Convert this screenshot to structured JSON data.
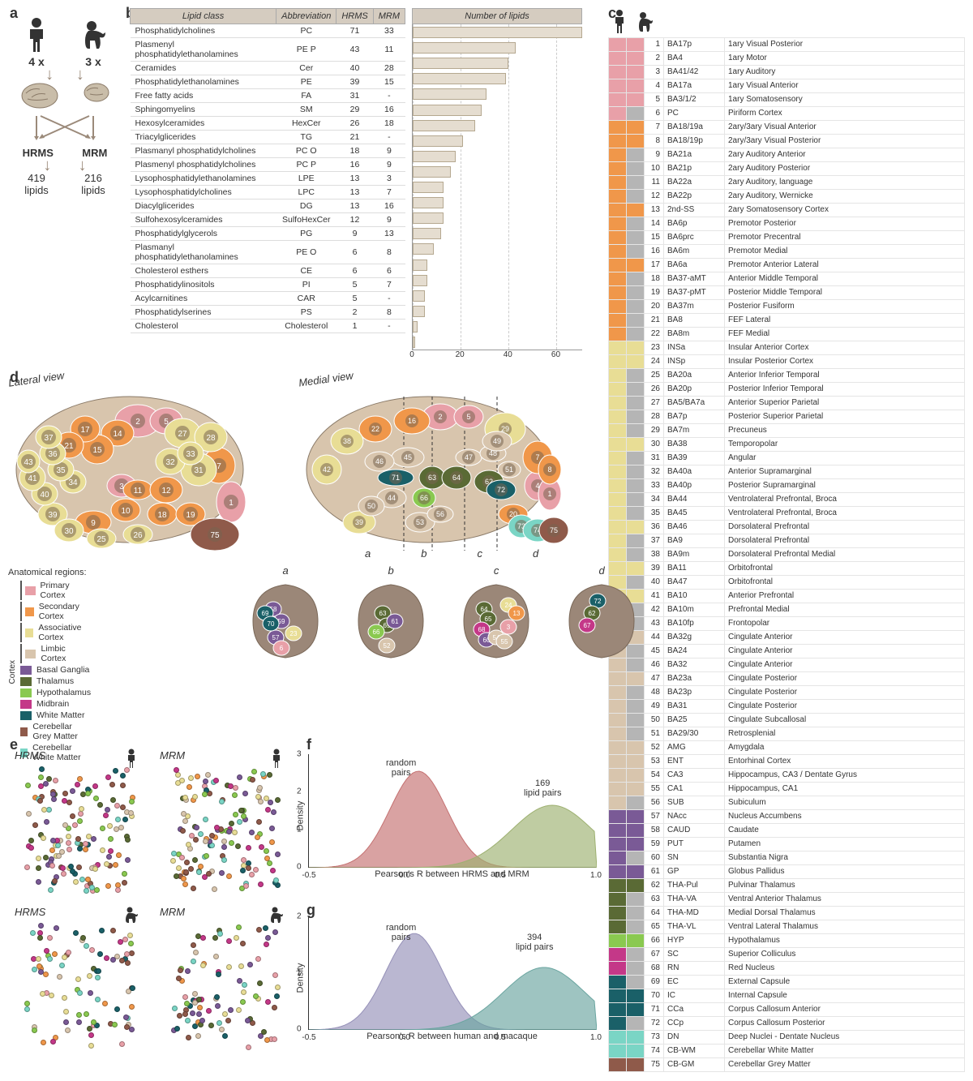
{
  "panel_labels": {
    "a": "a",
    "b": "b",
    "c": "c",
    "d": "d",
    "e": "e",
    "f": "f",
    "g": "g"
  },
  "panel_a": {
    "human_n": "4 x",
    "macaque_n": "3 x",
    "method1": "HRMS",
    "method2": "MRM",
    "lipids1": "419",
    "lipids2": "216",
    "lipids_word": "lipids"
  },
  "colors": {
    "primary_cortex": "#e8a0a8",
    "secondary_cortex": "#f0974a",
    "associative_cortex": "#e8dd95",
    "limbic_cortex": "#d8c5ad",
    "basal_ganglia": "#7a5a96",
    "thalamus": "#5a6a35",
    "hypothalamus": "#8ac950",
    "midbrain": "#c43888",
    "white_matter": "#1a6068",
    "cerebellar_grey": "#8f5a4a",
    "cerebellar_white": "#7ad5c5",
    "grey_absent": "#b5b5b5",
    "bar_fill": "#e5ddd0",
    "bar_border": "#b5a890",
    "table_header": "#d5ccc0",
    "density_f_random": "#c47070",
    "density_f_lipid": "#9db070",
    "density_g_random": "#9590b8",
    "density_g_lipid": "#6aa5a0"
  },
  "lipid_table": {
    "headers": [
      "Lipid class",
      "Abbreviation",
      "HRMS",
      "MRM"
    ],
    "bar_title": "Number of lipids",
    "xlim": [
      0,
      71
    ],
    "xticks": [
      0,
      20,
      40,
      60
    ],
    "rows": [
      [
        "Phosphatidylcholines",
        "PC",
        "71",
        "33",
        71
      ],
      [
        "Plasmenyl phosphatidylethanolamines",
        "PE P",
        "43",
        "11",
        43
      ],
      [
        "Ceramides",
        "Cer",
        "40",
        "28",
        40
      ],
      [
        "Phosphatidylethanolamines",
        "PE",
        "39",
        "15",
        39
      ],
      [
        "Free fatty acids",
        "FA",
        "31",
        "-",
        31
      ],
      [
        "Sphingomyelins",
        "SM",
        "29",
        "16",
        29
      ],
      [
        "Hexosylceramides",
        "HexCer",
        "26",
        "18",
        26
      ],
      [
        "Triacylglicerides",
        "TG",
        "21",
        "-",
        21
      ],
      [
        "Plasmanyl phosphatidylcholines",
        "PC O",
        "18",
        "9",
        18
      ],
      [
        "Plasmenyl phosphatidylcholines",
        "PC P",
        "16",
        "9",
        16
      ],
      [
        "Lysophosphatidylethanolamines",
        "LPE",
        "13",
        "3",
        13
      ],
      [
        "Lysophosphatidylcholines",
        "LPC",
        "13",
        "7",
        13
      ],
      [
        "Diacylglicerides",
        "DG",
        "13",
        "16",
        13
      ],
      [
        "Sulfohexosylceramides",
        "SulfoHexCer",
        "12",
        "9",
        12
      ],
      [
        "Phosphatidylglycerols",
        "PG",
        "9",
        "13",
        9
      ],
      [
        "Plasmanyl phosphatidylethanolamines",
        "PE O",
        "6",
        "8",
        6
      ],
      [
        "Cholesterol esthers",
        "CE",
        "6",
        "6",
        6
      ],
      [
        "Phosphatidylinositols",
        "PI",
        "5",
        "7",
        5
      ],
      [
        "Acylcarnitines",
        "CAR",
        "5",
        "-",
        5
      ],
      [
        "Phosphatidylserines",
        "PS",
        "2",
        "8",
        2
      ],
      [
        "Cholesterol",
        "Cholesterol",
        "1",
        "-",
        1
      ]
    ]
  },
  "legend_d": {
    "title": "Anatomical regions:",
    "cortex_label": "Cortex",
    "items": [
      {
        "label": "Primary Cortex",
        "color": "primary_cortex",
        "cortex": true
      },
      {
        "label": "Secondary Cortex",
        "color": "secondary_cortex",
        "cortex": true
      },
      {
        "label": "Associative Cortex",
        "color": "associative_cortex",
        "cortex": true
      },
      {
        "label": "Limbic Cortex",
        "color": "limbic_cortex",
        "cortex": true
      },
      {
        "label": "Basal Ganglia",
        "color": "basal_ganglia"
      },
      {
        "label": "Thalamus",
        "color": "thalamus"
      },
      {
        "label": "Hypothalamus",
        "color": "hypothalamus"
      },
      {
        "label": "Midbrain",
        "color": "midbrain"
      },
      {
        "label": "White Matter",
        "color": "white_matter"
      },
      {
        "label": "Cerebellar Grey Matter",
        "color": "cerebellar_grey"
      },
      {
        "label": "Cerebellar White Matter",
        "color": "cerebellar_white"
      }
    ]
  },
  "panel_d": {
    "lateral": "Lateral view",
    "medial": "Medial view",
    "sections": [
      "a",
      "b",
      "c",
      "d"
    ]
  },
  "regions": [
    [
      1,
      "BA17p",
      "1ary Visual Posterior",
      "primary_cortex",
      true
    ],
    [
      2,
      "BA4",
      "1ary Motor",
      "primary_cortex",
      true
    ],
    [
      3,
      "BA41/42",
      "1ary Auditory",
      "primary_cortex",
      true
    ],
    [
      4,
      "BA17a",
      "1ary Visual Anterior",
      "primary_cortex",
      true
    ],
    [
      5,
      "BA3/1/2",
      "1ary Somatosensory",
      "primary_cortex",
      true
    ],
    [
      6,
      "PC",
      "Piriform Cortex",
      "primary_cortex",
      false
    ],
    [
      7,
      "BA18/19a",
      "2ary/3ary Visual Anterior",
      "secondary_cortex",
      true
    ],
    [
      8,
      "BA18/19p",
      "2ary/3ary Visual Posterior",
      "secondary_cortex",
      true
    ],
    [
      9,
      "BA21a",
      "2ary Auditory Anterior",
      "secondary_cortex",
      false
    ],
    [
      10,
      "BA21p",
      "2ary Auditory Posterior",
      "secondary_cortex",
      false
    ],
    [
      11,
      "BA22a",
      "2ary Auditory, language",
      "secondary_cortex",
      false
    ],
    [
      12,
      "BA22p",
      "2ary Auditory, Wernicke",
      "secondary_cortex",
      false
    ],
    [
      13,
      "2nd-SS",
      "2ary Somatosensory Cortex",
      "secondary_cortex",
      true
    ],
    [
      14,
      "BA6p",
      "Premotor Posterior",
      "secondary_cortex",
      false
    ],
    [
      15,
      "BA6prc",
      "Premotor Precentral",
      "secondary_cortex",
      false
    ],
    [
      16,
      "BA6m",
      "Premotor Medial",
      "secondary_cortex",
      false
    ],
    [
      17,
      "BA6a",
      "Premotor Anterior Lateral",
      "secondary_cortex",
      true
    ],
    [
      18,
      "BA37-aMT",
      "Anterior Middle Temporal",
      "secondary_cortex",
      false
    ],
    [
      19,
      "BA37-pMT",
      "Posterior Middle Temporal",
      "secondary_cortex",
      false
    ],
    [
      20,
      "BA37m",
      "Posterior Fusiform",
      "secondary_cortex",
      false
    ],
    [
      21,
      "BA8",
      "FEF Lateral",
      "secondary_cortex",
      false
    ],
    [
      22,
      "BA8m",
      "FEF Medial",
      "secondary_cortex",
      false
    ],
    [
      23,
      "INSa",
      "Insular Anterior Cortex",
      "associative_cortex",
      true
    ],
    [
      24,
      "INSp",
      "Insular Posterior Cortex",
      "associative_cortex",
      true
    ],
    [
      25,
      "BA20a",
      "Anterior Inferior Temporal",
      "associative_cortex",
      false
    ],
    [
      26,
      "BA20p",
      "Posterior Inferior Temporal",
      "associative_cortex",
      false
    ],
    [
      27,
      "BA5/BA7a",
      "Anterior Superior Parietal",
      "associative_cortex",
      false
    ],
    [
      28,
      "BA7p",
      "Posterior Superior Parietal",
      "associative_cortex",
      false
    ],
    [
      29,
      "BA7m",
      "Precuneus",
      "associative_cortex",
      false
    ],
    [
      30,
      "BA38",
      "Temporopolar",
      "associative_cortex",
      true
    ],
    [
      31,
      "BA39",
      "Angular",
      "associative_cortex",
      false
    ],
    [
      32,
      "BA40a",
      "Anterior Supramarginal",
      "associative_cortex",
      false
    ],
    [
      33,
      "BA40p",
      "Posterior Supramarginal",
      "associative_cortex",
      false
    ],
    [
      34,
      "BA44",
      "Ventrolateral Prefrontal, Broca",
      "associative_cortex",
      false
    ],
    [
      35,
      "BA45",
      "Ventrolateral Prefrontal, Broca",
      "associative_cortex",
      false
    ],
    [
      36,
      "BA46",
      "Dorsolateral Prefrontal",
      "associative_cortex",
      true
    ],
    [
      37,
      "BA9",
      "Dorsolateral Prefrontal",
      "associative_cortex",
      false
    ],
    [
      38,
      "BA9m",
      "Dorsolateral Prefrontal Medial",
      "associative_cortex",
      false
    ],
    [
      39,
      "BA11",
      "Orbitofrontal",
      "associative_cortex",
      true
    ],
    [
      40,
      "BA47",
      "Orbitofrontal",
      "associative_cortex",
      false
    ],
    [
      41,
      "BA10",
      "Anterior Prefrontal",
      "associative_cortex",
      true
    ],
    [
      42,
      "BA10m",
      "Prefrontal Medial",
      "associative_cortex",
      false
    ],
    [
      43,
      "BA10fp",
      "Frontopolar",
      "associative_cortex",
      false
    ],
    [
      44,
      "BA32g",
      "Cingulate Anterior",
      "limbic_cortex",
      true
    ],
    [
      45,
      "BA24",
      "Cingulate Anterior",
      "limbic_cortex",
      false
    ],
    [
      46,
      "BA32",
      "Cingulate Anterior",
      "limbic_cortex",
      false
    ],
    [
      47,
      "BA23a",
      "Cingulate Posterior",
      "limbic_cortex",
      true
    ],
    [
      48,
      "BA23p",
      "Cingulate Posterior",
      "limbic_cortex",
      false
    ],
    [
      49,
      "BA31",
      "Cingulate Posterior",
      "limbic_cortex",
      false
    ],
    [
      50,
      "BA25",
      "Cingulate Subcallosal",
      "limbic_cortex",
      false
    ],
    [
      51,
      "BA29/30",
      "Retrosplenial",
      "limbic_cortex",
      false
    ],
    [
      52,
      "AMG",
      "Amygdala",
      "limbic_cortex",
      true
    ],
    [
      53,
      "ENT",
      "Entorhinal Cortex",
      "limbic_cortex",
      true
    ],
    [
      54,
      "CA3",
      "Hippocampus, CA3 / Dentate Gyrus",
      "limbic_cortex",
      true
    ],
    [
      55,
      "CA1",
      "Hippocampus, CA1",
      "limbic_cortex",
      true
    ],
    [
      56,
      "SUB",
      "Subiculum",
      "limbic_cortex",
      false
    ],
    [
      57,
      "NAcc",
      "Nucleus Accumbens",
      "basal_ganglia",
      true
    ],
    [
      58,
      "CAUD",
      "Caudate",
      "basal_ganglia",
      true
    ],
    [
      59,
      "PUT",
      "Putamen",
      "basal_ganglia",
      true
    ],
    [
      60,
      "SN",
      "Substantia Nigra",
      "basal_ganglia",
      false
    ],
    [
      61,
      "GP",
      "Globus Pallidus",
      "basal_ganglia",
      true
    ],
    [
      62,
      "THA-Pul",
      "Pulvinar Thalamus",
      "thalamus",
      true
    ],
    [
      63,
      "THA-VA",
      "Ventral Anterior Thalamus",
      "thalamus",
      false
    ],
    [
      64,
      "THA-MD",
      "Medial Dorsal Thalamus",
      "thalamus",
      false
    ],
    [
      65,
      "THA-VL",
      "Ventral Lateral Thalamus",
      "thalamus",
      false
    ],
    [
      66,
      "HYP",
      "Hypothalamus",
      "hypothalamus",
      true
    ],
    [
      67,
      "SC",
      "Superior Colliculus",
      "midbrain",
      false
    ],
    [
      68,
      "RN",
      "Red Nucleus",
      "midbrain",
      false
    ],
    [
      69,
      "EC",
      "External Capsule",
      "white_matter",
      false
    ],
    [
      70,
      "IC",
      "Internal Capsule",
      "white_matter",
      true
    ],
    [
      71,
      "CCa",
      "Corpus Callosum Anterior",
      "white_matter",
      true
    ],
    [
      72,
      "CCp",
      "Corpus Callosum Posterior",
      "white_matter",
      false
    ],
    [
      73,
      "DN",
      "Deep Nuclei - Dentate Nucleus",
      "cerebellar_white",
      true
    ],
    [
      74,
      "CB-WM",
      "Cerebellar White Matter",
      "cerebellar_white",
      true
    ],
    [
      75,
      "CB-GM",
      "Cerebellar Grey Matter",
      "cerebellar_grey",
      true
    ]
  ],
  "panel_e": {
    "labels": [
      "HRMS",
      "MRM",
      "HRMS",
      "MRM"
    ]
  },
  "panel_f": {
    "ylab": "Density",
    "xlab": "Pearson's R between HRMS and MRM",
    "xticks": [
      "-0.5",
      "0.0",
      "0.5",
      "1.0"
    ],
    "yticks": [
      "0",
      "1",
      "2",
      "3"
    ],
    "annot_random": "random\npairs",
    "annot_lipid": "169\nlipid pairs"
  },
  "panel_g": {
    "ylab": "Density",
    "xlab": "Pearson's R between human and macaque",
    "xticks": [
      "-0.5",
      "0.0",
      "0.5",
      "1.0"
    ],
    "yticks": [
      "0",
      "1",
      "2"
    ],
    "annot_random": "random\npairs",
    "annot_lipid": "394\nlipid pairs"
  }
}
